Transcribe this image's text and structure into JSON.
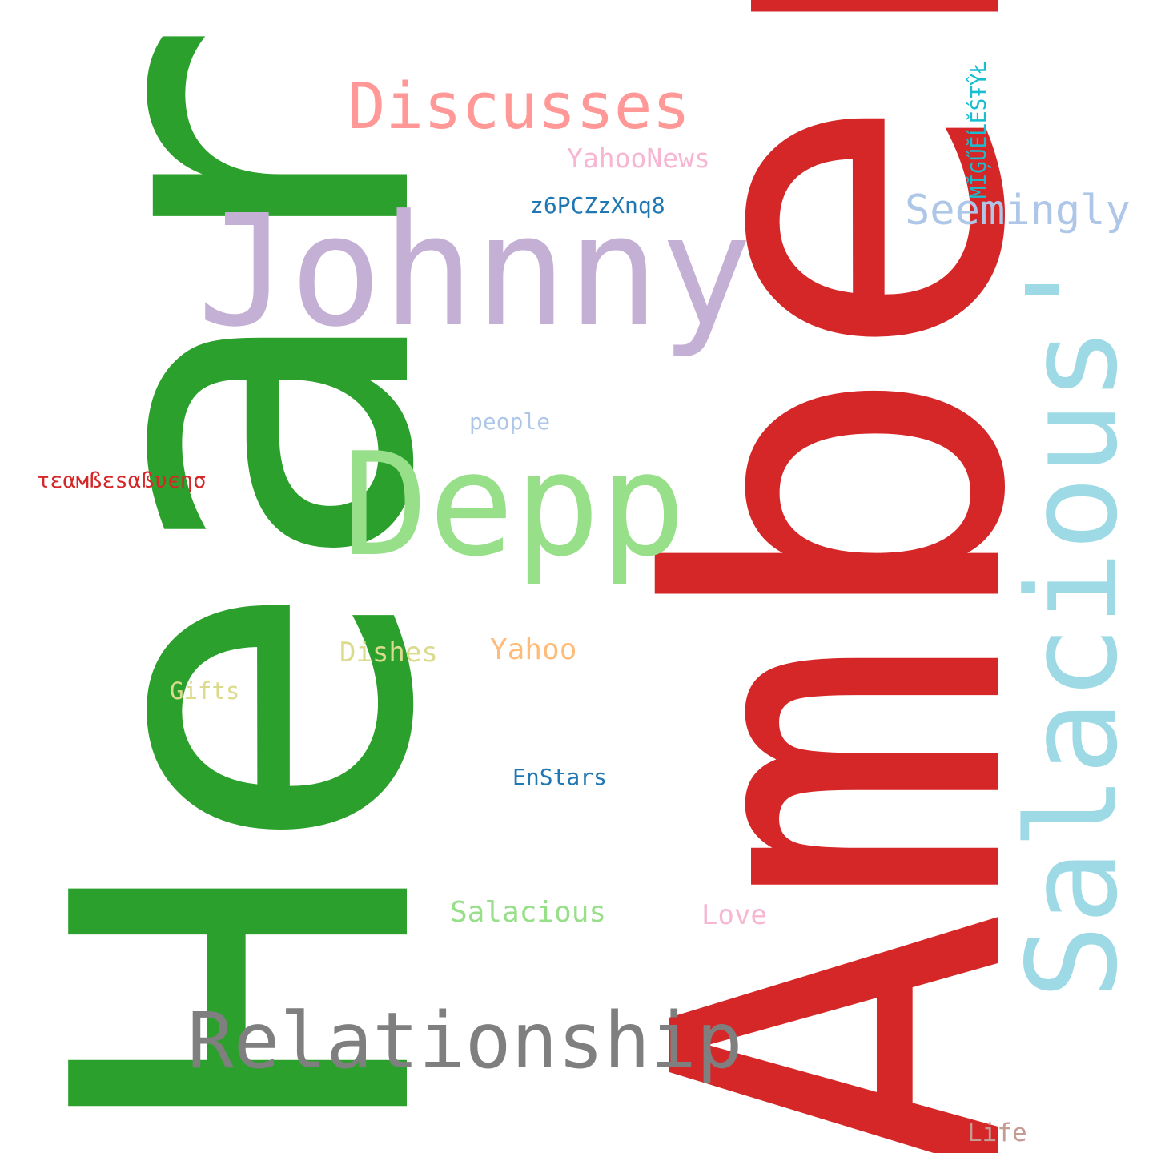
{
  "words": [
    {
      "text": "Heard",
      "color": "#2ca02c"
    },
    {
      "text": "Amber",
      "color": "#d62728"
    },
    {
      "text": "Johnny",
      "color": "#c5b0d5"
    },
    {
      "text": "Depp",
      "color": "#98df8a"
    },
    {
      "text": "Salacious'",
      "color": "#9edae5"
    },
    {
      "text": "Relationship",
      "color": "#7f7f7f"
    },
    {
      "text": "Discusses",
      "color": "#ff9896"
    },
    {
      "text": "Seemingly",
      "color": "#aec7e8"
    },
    {
      "text": "YahooNews",
      "color": "#f7b6d2"
    },
    {
      "text": "z6PCZzXnq8",
      "color": "#1f77b4"
    },
    {
      "text": "MĬĢŰĔĹĚŚŦŶŁ",
      "color": "#17becf"
    },
    {
      "text": "people",
      "color": "#aec7e8"
    },
    {
      "text": "τεαмßεѕαßυєησ",
      "color": "#d62728"
    },
    {
      "text": "Dishes",
      "color": "#dbdb8d"
    },
    {
      "text": "Yahoo",
      "color": "#ffbb78"
    },
    {
      "text": "Gifts",
      "color": "#dbdb8d"
    },
    {
      "text": "EnStars",
      "color": "#1f77b4"
    },
    {
      "text": "Salacious",
      "color": "#98df8a"
    },
    {
      "text": "Love",
      "color": "#f7b6d2"
    },
    {
      "text": "Life",
      "color": "#c49c94"
    }
  ]
}
